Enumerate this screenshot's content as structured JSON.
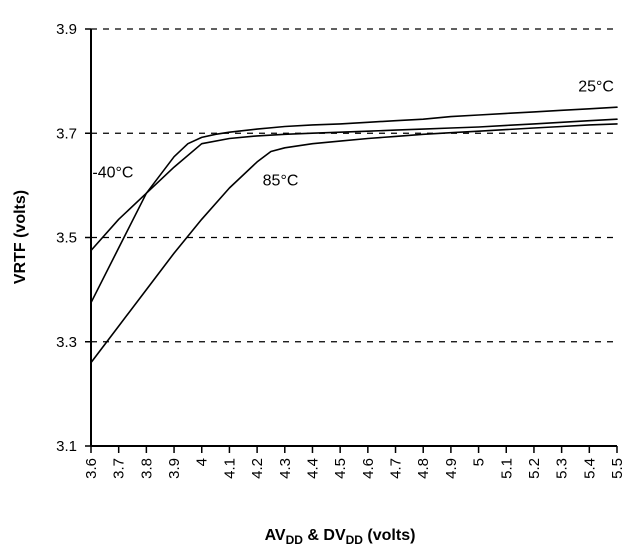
{
  "chart_data": {
    "type": "line",
    "ylabel": "VRTF (volts)",
    "xlabel": {
      "main1": "AV",
      "sub1": "DD",
      "mid": " & DV",
      "sub2": "DD",
      "tail": " (volts)"
    },
    "ylim": [
      3.1,
      3.9
    ],
    "xlim": [
      3.6,
      5.5
    ],
    "y_ticks": [
      3.1,
      3.3,
      3.5,
      3.7,
      3.9
    ],
    "y_tick_labels": [
      "3.1",
      "3.3",
      "3.5",
      "3.7",
      "3.9"
    ],
    "x_ticks": [
      3.6,
      3.7,
      3.8,
      3.9,
      4.0,
      4.1,
      4.2,
      4.3,
      4.4,
      4.5,
      4.6,
      4.7,
      4.8,
      4.9,
      5.0,
      5.1,
      5.2,
      5.3,
      5.4,
      5.5
    ],
    "x_tick_labels": [
      "3.6",
      "3.7",
      "3.8",
      "3.9",
      "4",
      "4.1",
      "4.2",
      "4.3",
      "4.4",
      "4.5",
      "4.6",
      "4.7",
      "4.8",
      "4.9",
      "5",
      "5.1",
      "5.2",
      "5.3",
      "5.4",
      "5.5"
    ],
    "grid": "horizontal-dashed",
    "series": [
      {
        "name": "-40°C",
        "x": [
          3.6,
          3.7,
          3.8,
          3.9,
          4.0,
          4.1,
          4.2,
          4.3,
          4.4,
          4.5,
          4.6,
          4.7,
          4.8,
          4.9,
          5.0,
          5.1,
          5.2,
          5.3,
          5.4,
          5.5
        ],
        "values": [
          3.475,
          3.535,
          3.585,
          3.635,
          3.68,
          3.69,
          3.695,
          3.698,
          3.7,
          3.702,
          3.704,
          3.706,
          3.708,
          3.71,
          3.712,
          3.715,
          3.718,
          3.721,
          3.724,
          3.727
        ]
      },
      {
        "name": "25°C",
        "x": [
          3.6,
          3.7,
          3.8,
          3.9,
          3.95,
          4.0,
          4.05,
          4.1,
          4.2,
          4.3,
          4.4,
          4.5,
          4.6,
          4.7,
          4.8,
          4.9,
          5.0,
          5.1,
          5.2,
          5.3,
          5.4,
          5.5
        ],
        "values": [
          3.375,
          3.48,
          3.585,
          3.655,
          3.68,
          3.692,
          3.698,
          3.702,
          3.708,
          3.713,
          3.716,
          3.718,
          3.721,
          3.724,
          3.727,
          3.732,
          3.735,
          3.738,
          3.741,
          3.744,
          3.747,
          3.75
        ]
      },
      {
        "name": "85°C",
        "x": [
          3.6,
          3.7,
          3.8,
          3.9,
          4.0,
          4.1,
          4.2,
          4.25,
          4.3,
          4.4,
          4.5,
          4.6,
          4.7,
          4.8,
          4.9,
          5.0,
          5.1,
          5.2,
          5.3,
          5.4,
          5.5
        ],
        "values": [
          3.26,
          3.33,
          3.4,
          3.47,
          3.535,
          3.595,
          3.645,
          3.665,
          3.672,
          3.68,
          3.685,
          3.69,
          3.694,
          3.698,
          3.701,
          3.704,
          3.707,
          3.71,
          3.713,
          3.716,
          3.718
        ]
      }
    ],
    "annotations": [
      {
        "text": "25°C",
        "series": "25°C"
      },
      {
        "text": "-40°C",
        "series": "-40°C"
      },
      {
        "text": "85°C",
        "series": "85°C"
      }
    ]
  }
}
